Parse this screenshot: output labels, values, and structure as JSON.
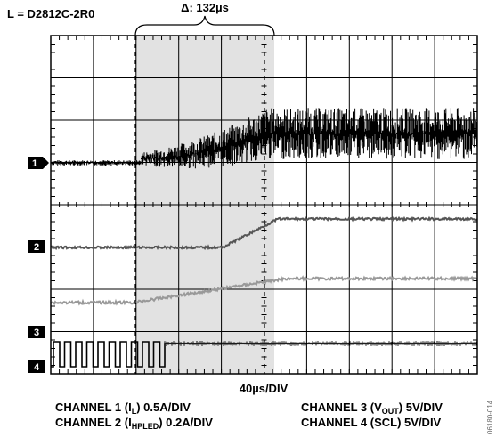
{
  "header": {
    "inductor": "L = D2812C-2R0",
    "delta": "Δ: 132µs"
  },
  "markers": [
    "1",
    "2",
    "3",
    "4"
  ],
  "timebase": "40µs/DIV",
  "channels": [
    {
      "prefix": "CHANNEL 1 (I",
      "sub": "L",
      "suffix": ") 0.5A/DIV"
    },
    {
      "prefix": "CHANNEL 2 (I",
      "sub": "HPLED",
      "suffix": ") 0.2A/DIV"
    },
    {
      "prefix": "CHANNEL 3 (V",
      "sub": "OUT",
      "suffix": ") 5V/DIV"
    },
    {
      "prefix": "CHANNEL 4 (SCL) 5V/DIV",
      "sub": "",
      "suffix": ""
    }
  ],
  "figure_code": "06180-014"
}
